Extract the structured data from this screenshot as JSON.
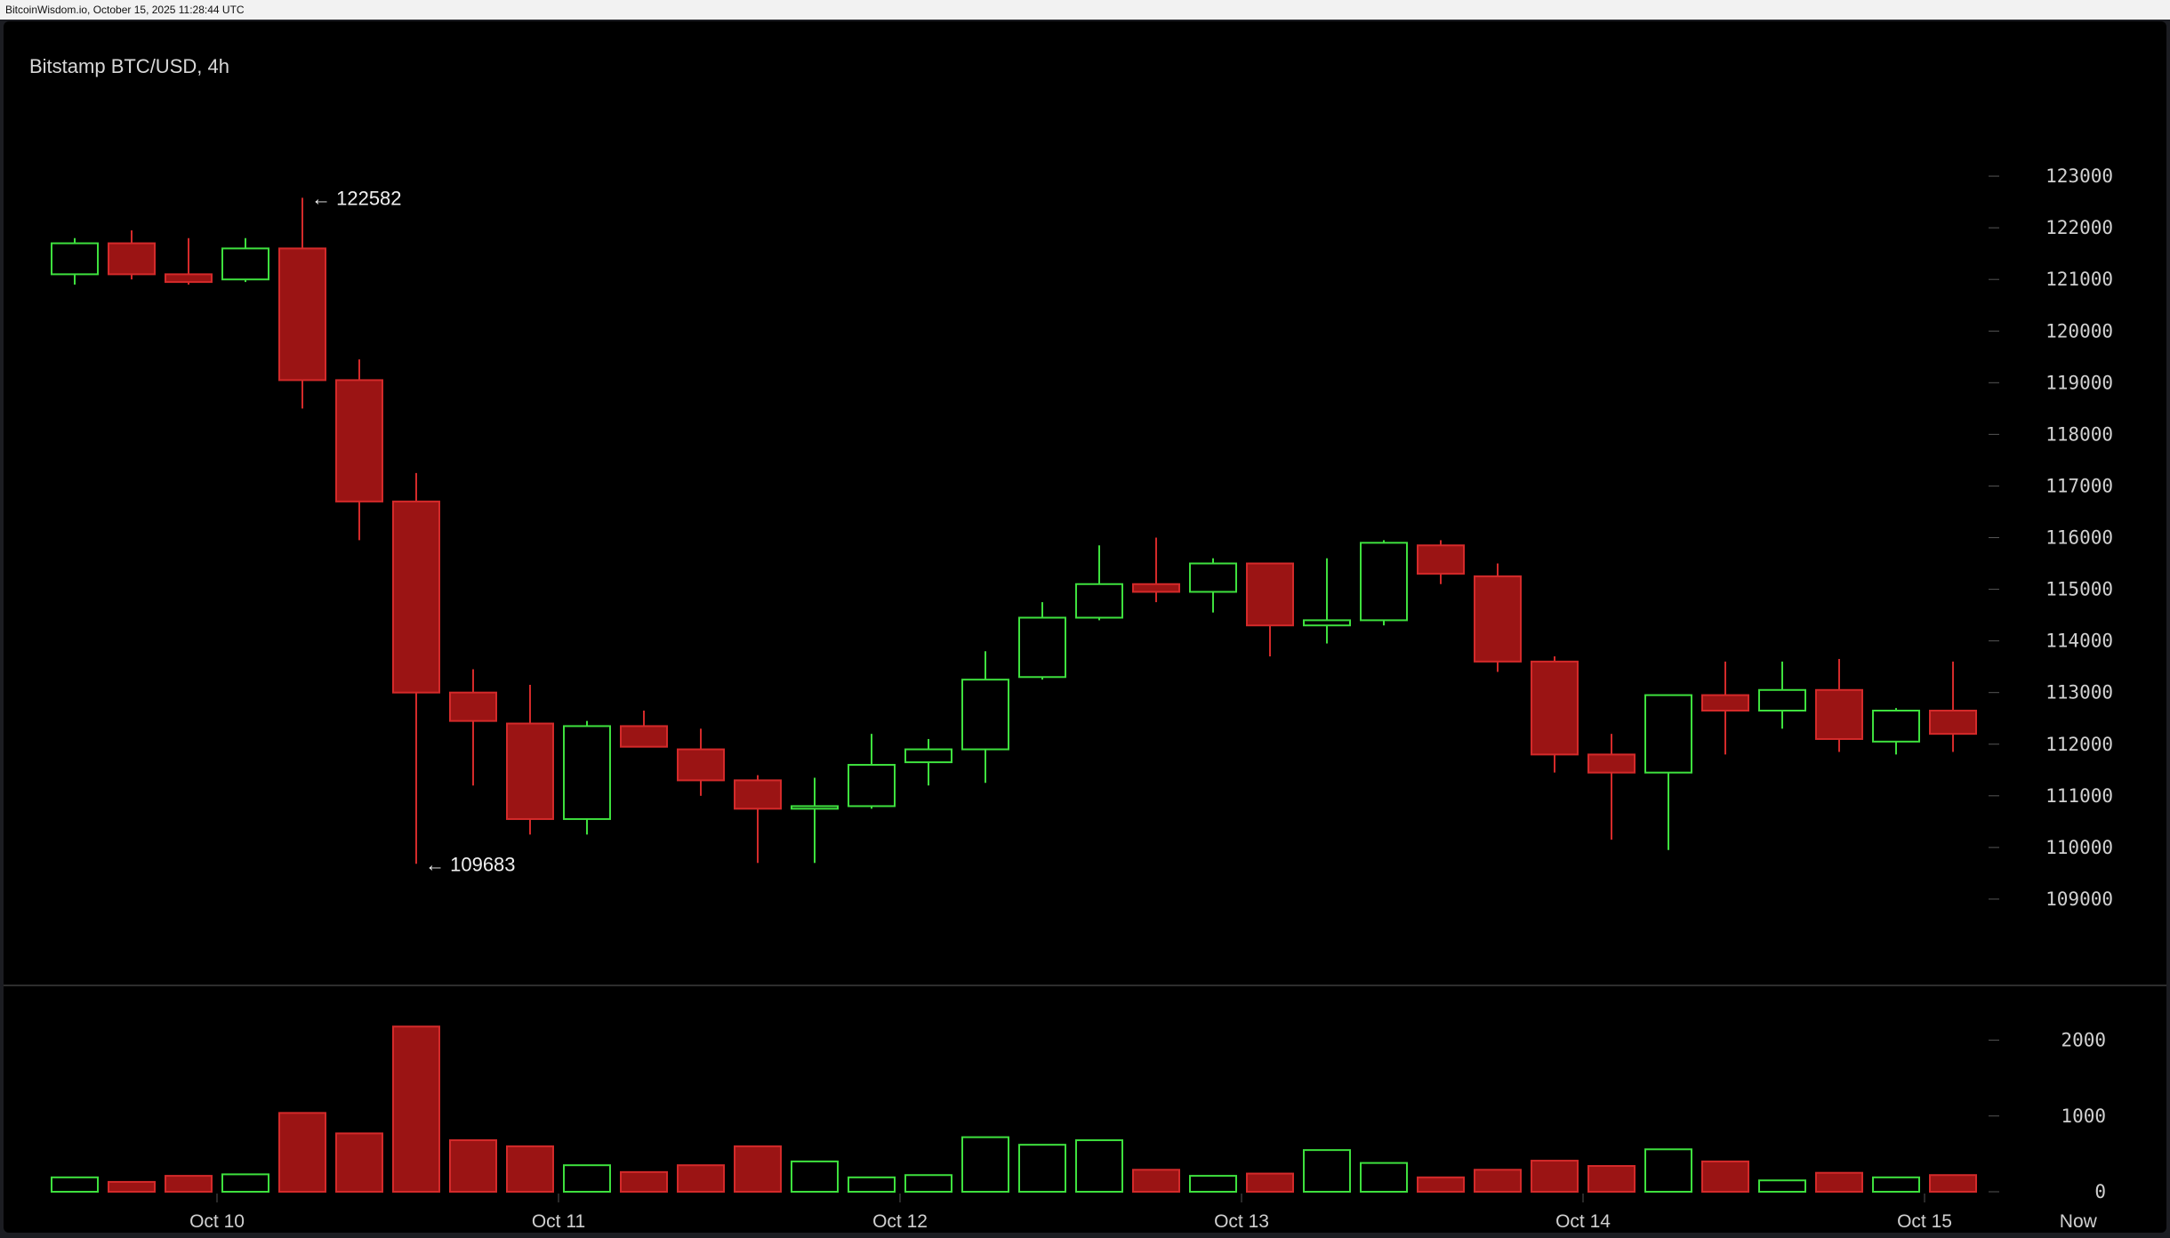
{
  "header": {
    "caption": "BitcoinWisdom.io, October 15, 2025 11:28:44 UTC"
  },
  "colors": {
    "up": "#3ee03e",
    "down": "#9b1414",
    "down_edge": "#d42a2a",
    "axis_text": "#d0d0d0",
    "grid_tick": "#555555",
    "separator": "#5a5a5a"
  },
  "chart_data": {
    "type": "candlestick",
    "title": "Bitstamp BTC/USD, 4h",
    "price_axis": {
      "ylim": [
        108000,
        124000
      ],
      "ticks": [
        "123000",
        "122000",
        "121000",
        "120000",
        "119000",
        "118000",
        "117000",
        "116000",
        "115000",
        "114000",
        "113000",
        "112000",
        "111000",
        "110000",
        "109000"
      ]
    },
    "volume_axis": {
      "ylim": [
        0,
        2300
      ],
      "ticks": [
        "2000",
        "1000",
        "0"
      ]
    },
    "x_labels": [
      {
        "label": "Oct 10",
        "at": 2.5
      },
      {
        "label": "Oct 11",
        "at": 8.5
      },
      {
        "label": "Oct 12",
        "at": 14.5
      },
      {
        "label": "Oct 13",
        "at": 20.5
      },
      {
        "label": "Oct 14",
        "at": 26.5
      },
      {
        "label": "Oct 15",
        "at": 32.5
      },
      {
        "label": "Now",
        "at": 35.2
      }
    ],
    "annotations": [
      {
        "label": "← 122582",
        "index": 4,
        "value": 122582
      },
      {
        "label": "← 109683",
        "index": 6,
        "value": 109683
      }
    ],
    "candles": [
      {
        "o": 121100,
        "h": 121800,
        "l": 120900,
        "c": 121700,
        "v": 190
      },
      {
        "o": 121700,
        "h": 121950,
        "l": 121000,
        "c": 121100,
        "v": 130
      },
      {
        "o": 121100,
        "h": 121800,
        "l": 120900,
        "c": 120950,
        "v": 210
      },
      {
        "o": 121000,
        "h": 121800,
        "l": 120950,
        "c": 121600,
        "v": 230
      },
      {
        "o": 121600,
        "h": 122582,
        "l": 118500,
        "c": 119050,
        "v": 1040
      },
      {
        "o": 119050,
        "h": 119450,
        "l": 115950,
        "c": 116700,
        "v": 770
      },
      {
        "o": 116700,
        "h": 117250,
        "l": 109683,
        "c": 113000,
        "v": 2180
      },
      {
        "o": 113000,
        "h": 113450,
        "l": 111200,
        "c": 112450,
        "v": 680
      },
      {
        "o": 112400,
        "h": 113150,
        "l": 110250,
        "c": 110550,
        "v": 600
      },
      {
        "o": 110550,
        "h": 112450,
        "l": 110250,
        "c": 112350,
        "v": 350
      },
      {
        "o": 112350,
        "h": 112650,
        "l": 111950,
        "c": 111950,
        "v": 260
      },
      {
        "o": 111900,
        "h": 112300,
        "l": 111000,
        "c": 111300,
        "v": 350
      },
      {
        "o": 111300,
        "h": 111400,
        "l": 109700,
        "c": 110750,
        "v": 600
      },
      {
        "o": 110750,
        "h": 111350,
        "l": 109700,
        "c": 110800,
        "v": 400
      },
      {
        "o": 110800,
        "h": 112200,
        "l": 110750,
        "c": 111600,
        "v": 190
      },
      {
        "o": 111650,
        "h": 112100,
        "l": 111200,
        "c": 111900,
        "v": 220
      },
      {
        "o": 111900,
        "h": 113800,
        "l": 111250,
        "c": 113250,
        "v": 720
      },
      {
        "o": 113300,
        "h": 114750,
        "l": 113250,
        "c": 114450,
        "v": 620
      },
      {
        "o": 114450,
        "h": 115850,
        "l": 114400,
        "c": 115100,
        "v": 680
      },
      {
        "o": 115100,
        "h": 116000,
        "l": 114750,
        "c": 114950,
        "v": 290
      },
      {
        "o": 114950,
        "h": 115600,
        "l": 114550,
        "c": 115500,
        "v": 210
      },
      {
        "o": 115500,
        "h": 115500,
        "l": 113700,
        "c": 114300,
        "v": 240
      },
      {
        "o": 114300,
        "h": 115600,
        "l": 113950,
        "c": 114400,
        "v": 550
      },
      {
        "o": 114400,
        "h": 115950,
        "l": 114300,
        "c": 115900,
        "v": 380
      },
      {
        "o": 115850,
        "h": 115950,
        "l": 115100,
        "c": 115300,
        "v": 190
      },
      {
        "o": 115250,
        "h": 115500,
        "l": 113400,
        "c": 113600,
        "v": 290
      },
      {
        "o": 113600,
        "h": 113700,
        "l": 111450,
        "c": 111800,
        "v": 410
      },
      {
        "o": 111800,
        "h": 112200,
        "l": 110150,
        "c": 111450,
        "v": 340
      },
      {
        "o": 111450,
        "h": 112950,
        "l": 109950,
        "c": 112950,
        "v": 560
      },
      {
        "o": 112950,
        "h": 113600,
        "l": 111800,
        "c": 112650,
        "v": 400
      },
      {
        "o": 112650,
        "h": 113600,
        "l": 112300,
        "c": 113050,
        "v": 150
      },
      {
        "o": 113050,
        "h": 113650,
        "l": 111850,
        "c": 112100,
        "v": 250
      },
      {
        "o": 112050,
        "h": 112700,
        "l": 111800,
        "c": 112650,
        "v": 190
      },
      {
        "o": 112650,
        "h": 113600,
        "l": 111850,
        "c": 112200,
        "v": 220
      }
    ]
  }
}
